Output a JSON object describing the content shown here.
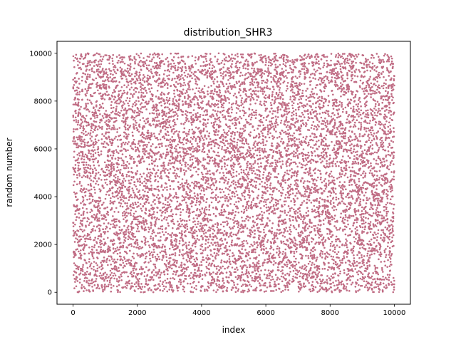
{
  "chart_data": {
    "type": "scatter",
    "title": "distribution_SHR3",
    "xlabel": "index",
    "ylabel": "random number",
    "xlim": [
      -500,
      10500
    ],
    "ylim": [
      -500,
      10500
    ],
    "xticks": [
      0,
      2000,
      4000,
      6000,
      8000,
      10000
    ],
    "yticks": [
      0,
      2000,
      4000,
      6000,
      8000,
      10000
    ],
    "grid": false,
    "series": [
      {
        "name": "SHR3",
        "color": "#c06c84",
        "n_points": 10000,
        "x_range": [
          0,
          10000
        ],
        "y_range": [
          0,
          10000
        ],
        "distribution": "uniform"
      }
    ]
  }
}
